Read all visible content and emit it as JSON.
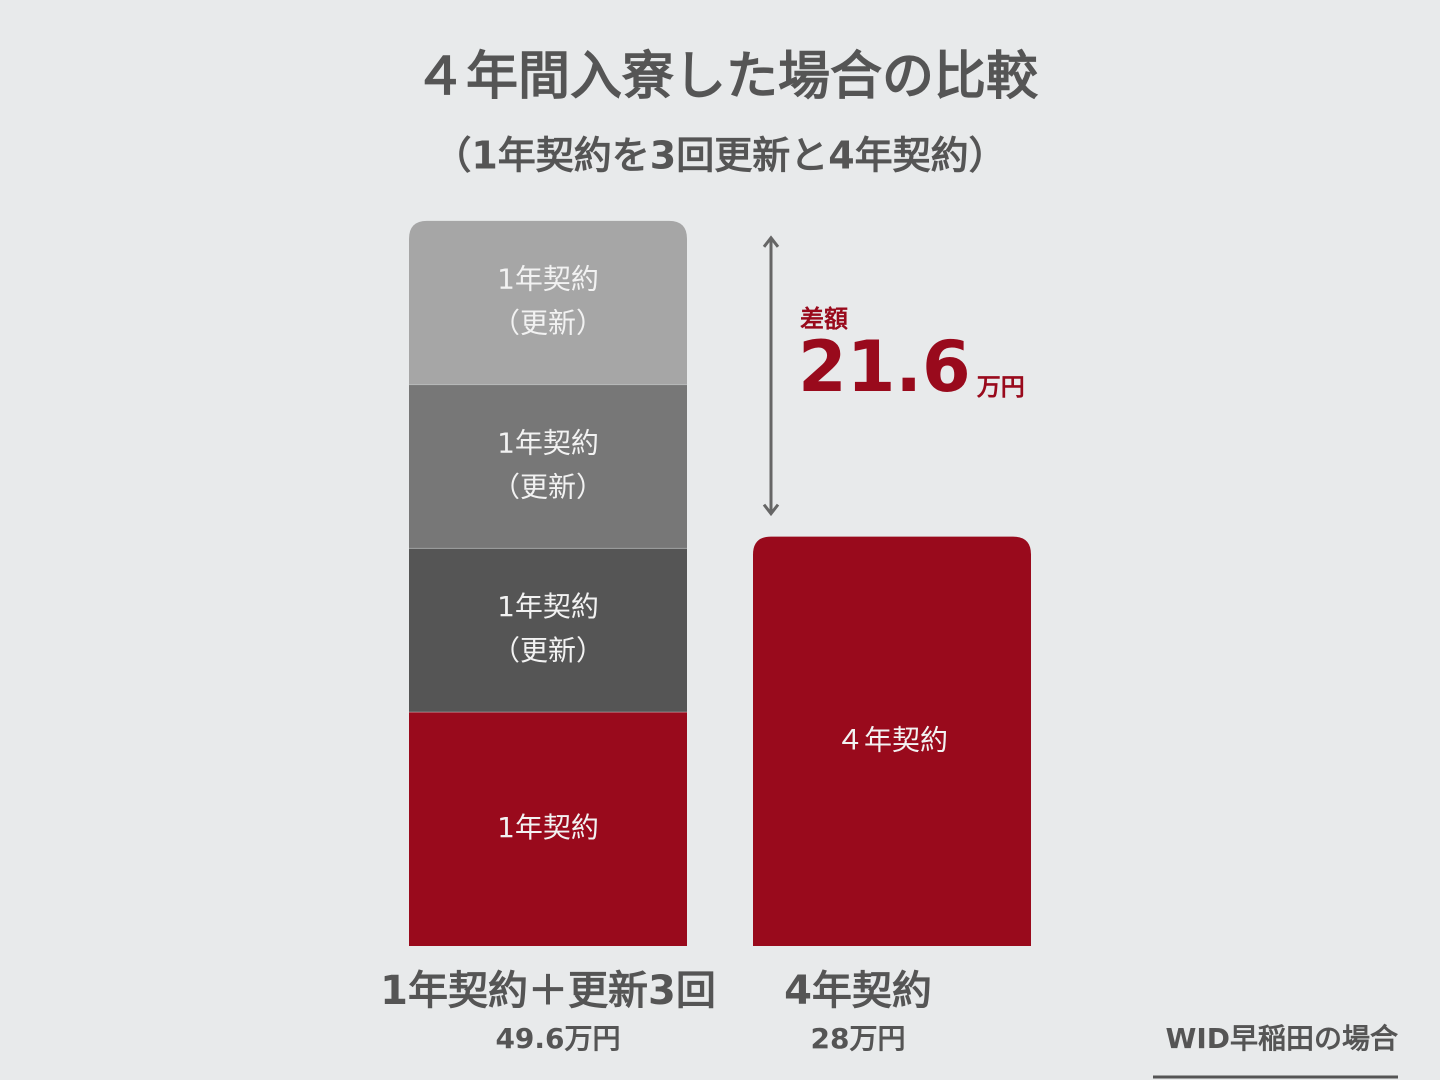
{
  "chart_data": {
    "type": "stacked-bar",
    "title": "４年間入寮した場合の比較",
    "subtitle": "（1年契約を3回更新と4年契約）",
    "categories": [
      "1年契約＋更新3回",
      "4年契約"
    ],
    "values": [
      49.6,
      28
    ],
    "value_labels": [
      "49.6万円",
      "28万円"
    ],
    "segments": [
      [
        {
          "lines": [
            "1年契約"
          ],
          "value": 16,
          "color": "#990a1c"
        },
        {
          "lines": [
            "1年契約",
            "（更新）"
          ],
          "value": 11.2,
          "color": "#555555"
        },
        {
          "lines": [
            "1年契約",
            "（更新）"
          ],
          "value": 11.2,
          "color": "#777777"
        },
        {
          "lines": [
            "1年契約",
            "（更新）"
          ],
          "value": 11.2,
          "color": "#a6a6a6"
        }
      ],
      [
        {
          "lines": [
            "４年契約"
          ],
          "value": 28,
          "color": "#990a1c"
        }
      ]
    ],
    "difference": {
      "label": "差額",
      "value": 21.6,
      "unit": "万円",
      "color": "#990a1c"
    },
    "note": "WID早稲田の場合"
  }
}
